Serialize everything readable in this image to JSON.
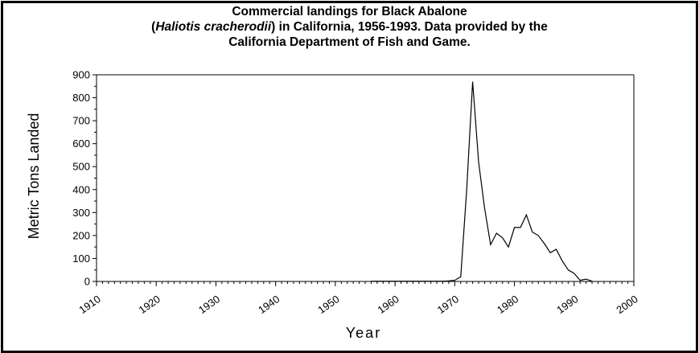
{
  "chart_data": {
    "type": "line",
    "title_line1": "Commercial landings for Black Abalone",
    "title_line2_italic": "Haliotis cracherodii",
    "title_line2_prefix": "(",
    "title_line2_suffix": ")  in California, 1956-1993.  Data provided by the",
    "title_line3": "California Department of Fish and Game.",
    "xlabel": "Year",
    "ylabel": "Metric Tons Landed",
    "xlim": [
      1910,
      2000
    ],
    "ylim": [
      0,
      900
    ],
    "x_ticks": [
      "1910",
      "1920",
      "1930",
      "1940",
      "1950",
      "1960",
      "1970",
      "1980",
      "1990",
      "2000"
    ],
    "y_ticks": [
      "0",
      "100",
      "200",
      "300",
      "400",
      "500",
      "600",
      "700",
      "800",
      "900"
    ],
    "grid": false,
    "series": [
      {
        "x": [
          1956,
          1957,
          1958,
          1959,
          1960,
          1961,
          1962,
          1963,
          1964,
          1965,
          1966,
          1967,
          1968,
          1969,
          1970,
          1971,
          1972,
          1973,
          1974,
          1975,
          1976,
          1977,
          1978,
          1979,
          1980,
          1981,
          1982,
          1983,
          1984,
          1985,
          1986,
          1987,
          1988,
          1989,
          1990,
          1991,
          1992,
          1993
        ],
        "y": [
          1,
          1,
          1,
          1,
          1,
          1,
          1,
          1,
          1,
          1,
          1,
          1,
          1,
          2,
          5,
          20,
          400,
          870,
          520,
          320,
          160,
          210,
          190,
          150,
          235,
          235,
          290,
          215,
          200,
          165,
          125,
          140,
          90,
          50,
          35,
          5,
          10,
          1
        ]
      }
    ]
  }
}
